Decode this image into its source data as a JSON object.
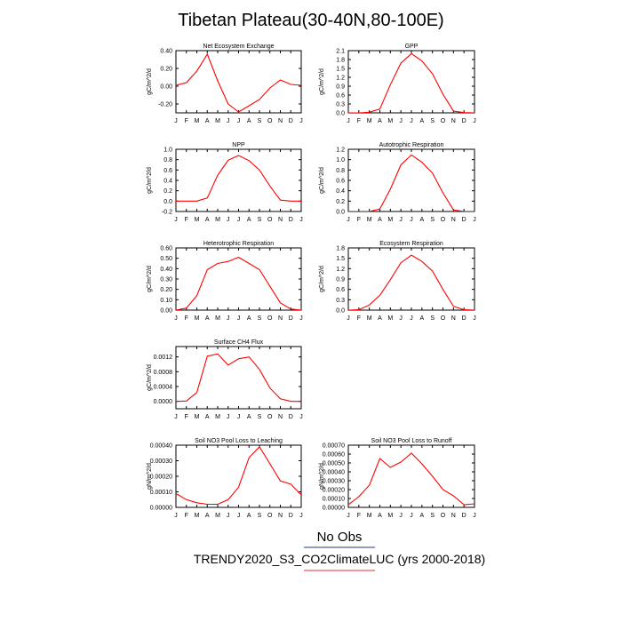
{
  "title": "Tibetan Plateau(30-40N,80-100E)",
  "legend": {
    "obs_label": "No Obs",
    "obs_color": "#1e3a8a",
    "model_label": "TRENDY2020_S3_CO2ClimateLUC (yrs 2000-2018)",
    "model_color": "#e52e3b"
  },
  "series_color": "#ff0000",
  "month_labels": [
    "J",
    "F",
    "M",
    "A",
    "M",
    "J",
    "J",
    "A",
    "S",
    "O",
    "N",
    "D",
    "J"
  ],
  "chart_data": [
    {
      "type": "line",
      "title": "Net Ecosystem Exchange",
      "ylabel": "gC/m^2/d",
      "ylim": [
        -0.3,
        0.4
      ],
      "yticks": [
        -0.2,
        0.0,
        0.2,
        0.4
      ],
      "ytick_labels": [
        "-0.20",
        "0.00",
        "0.20",
        "0.40"
      ],
      "values": [
        0.01,
        0.04,
        0.17,
        0.36,
        0.06,
        -0.2,
        -0.29,
        -0.22,
        -0.15,
        -0.02,
        0.07,
        0.02,
        0.01
      ]
    },
    {
      "type": "line",
      "title": "GPP",
      "ylabel": "gC/m^2/d",
      "ylim": [
        0,
        2.1
      ],
      "yticks": [
        0,
        0.3,
        0.6,
        0.9,
        1.2,
        1.5,
        1.8,
        2.1
      ],
      "ytick_labels": [
        "0.0",
        "0.3",
        "0.6",
        "0.9",
        "1.2",
        "1.5",
        "1.8",
        "2.1"
      ],
      "values": [
        0.0,
        0.0,
        0.02,
        0.13,
        0.95,
        1.68,
        2.0,
        1.75,
        1.32,
        0.63,
        0.06,
        0.01,
        0.0
      ]
    },
    {
      "type": "line",
      "title": "NPP",
      "ylabel": "gC/m^2/d",
      "ylim": [
        -0.2,
        1.0
      ],
      "yticks": [
        -0.2,
        0.0,
        0.2,
        0.4,
        0.6,
        0.8,
        1.0
      ],
      "ytick_labels": [
        "-0.2",
        "0.0",
        "0.2",
        "0.4",
        "0.6",
        "0.8",
        "1.0"
      ],
      "values": [
        0.0,
        0.0,
        0.0,
        0.06,
        0.5,
        0.79,
        0.88,
        0.78,
        0.6,
        0.29,
        0.02,
        0.0,
        0.0
      ]
    },
    {
      "type": "line",
      "title": "Autotrophic Respiration",
      "ylabel": "gC/m^2/d",
      "ylim": [
        0,
        1.2
      ],
      "yticks": [
        0,
        0.2,
        0.4,
        0.6,
        0.8,
        1.0,
        1.2
      ],
      "ytick_labels": [
        "0.0",
        "0.2",
        "0.4",
        "0.6",
        "0.8",
        "1.0",
        "1.2"
      ],
      "values": [
        0.0,
        0.0,
        0.0,
        0.05,
        0.43,
        0.9,
        1.09,
        0.95,
        0.74,
        0.36,
        0.03,
        0.0,
        0.0
      ]
    },
    {
      "type": "line",
      "title": "Heterotrophic Respiration",
      "ylabel": "gC/m^2/d",
      "ylim": [
        0,
        0.6
      ],
      "yticks": [
        0,
        0.1,
        0.2,
        0.3,
        0.4,
        0.5,
        0.6
      ],
      "ytick_labels": [
        "0.00",
        "0.10",
        "0.20",
        "0.30",
        "0.40",
        "0.50",
        "0.60"
      ],
      "values": [
        0.0,
        0.02,
        0.14,
        0.39,
        0.45,
        0.47,
        0.51,
        0.45,
        0.39,
        0.23,
        0.07,
        0.01,
        0.0
      ]
    },
    {
      "type": "line",
      "title": "Ecosystem Respiration",
      "ylabel": "gC/m^2/d",
      "ylim": [
        0,
        1.8
      ],
      "yticks": [
        0,
        0.3,
        0.6,
        0.9,
        1.2,
        1.5,
        1.8
      ],
      "ytick_labels": [
        "0.0",
        "0.3",
        "0.6",
        "0.9",
        "1.2",
        "1.5",
        "1.8"
      ],
      "values": [
        0.0,
        0.01,
        0.15,
        0.43,
        0.88,
        1.37,
        1.59,
        1.41,
        1.13,
        0.6,
        0.11,
        0.01,
        0.0
      ]
    },
    {
      "type": "line",
      "title": "Surface CH4 Flux",
      "ylabel": "gC/m^2/d",
      "ylim": [
        -0.0002,
        0.00148
      ],
      "yticks": [
        0.0,
        0.0004,
        0.0008,
        0.0012
      ],
      "ytick_labels": [
        "0.0000",
        "0.0004",
        "0.0008",
        "0.0012"
      ],
      "values": [
        0.0,
        1e-05,
        0.00024,
        0.00122,
        0.00128,
        0.00098,
        0.00115,
        0.0012,
        0.00086,
        0.00036,
        7e-05,
        0.0,
        0.0
      ]
    },
    {
      "type": "line",
      "title": "Soil NO3 Pool Loss to Leaching",
      "ylabel": "gN/m^2/d",
      "ylim": [
        0,
        0.0004
      ],
      "yticks": [
        0,
        0.0001,
        0.0002,
        0.0003,
        0.0004
      ],
      "ytick_labels": [
        "0.00000",
        "0.00010",
        "0.00020",
        "0.00030",
        "0.00040"
      ],
      "values": [
        9e-05,
        5e-05,
        3e-05,
        2e-05,
        2e-05,
        5e-05,
        0.00013,
        0.00032,
        0.00039,
        0.00028,
        0.00017,
        0.00015,
        8e-05
      ]
    },
    {
      "type": "line",
      "title": "Soil NO3 Pool Loss to Runoff",
      "ylabel": "gN/m^2/d",
      "ylim": [
        0,
        0.0007
      ],
      "yticks": [
        0,
        0.0001,
        0.0002,
        0.0003,
        0.0004,
        0.0005,
        0.0006,
        0.0007
      ],
      "ytick_labels": [
        "0.00000",
        "0.00010",
        "0.00020",
        "0.00030",
        "0.00040",
        "0.00050",
        "0.00060",
        "0.00070"
      ],
      "values": [
        3e-05,
        0.00012,
        0.00025,
        0.00055,
        0.00045,
        0.00051,
        0.00061,
        0.00049,
        0.00035,
        0.0002,
        0.00013,
        3e-05,
        4e-05
      ]
    }
  ]
}
